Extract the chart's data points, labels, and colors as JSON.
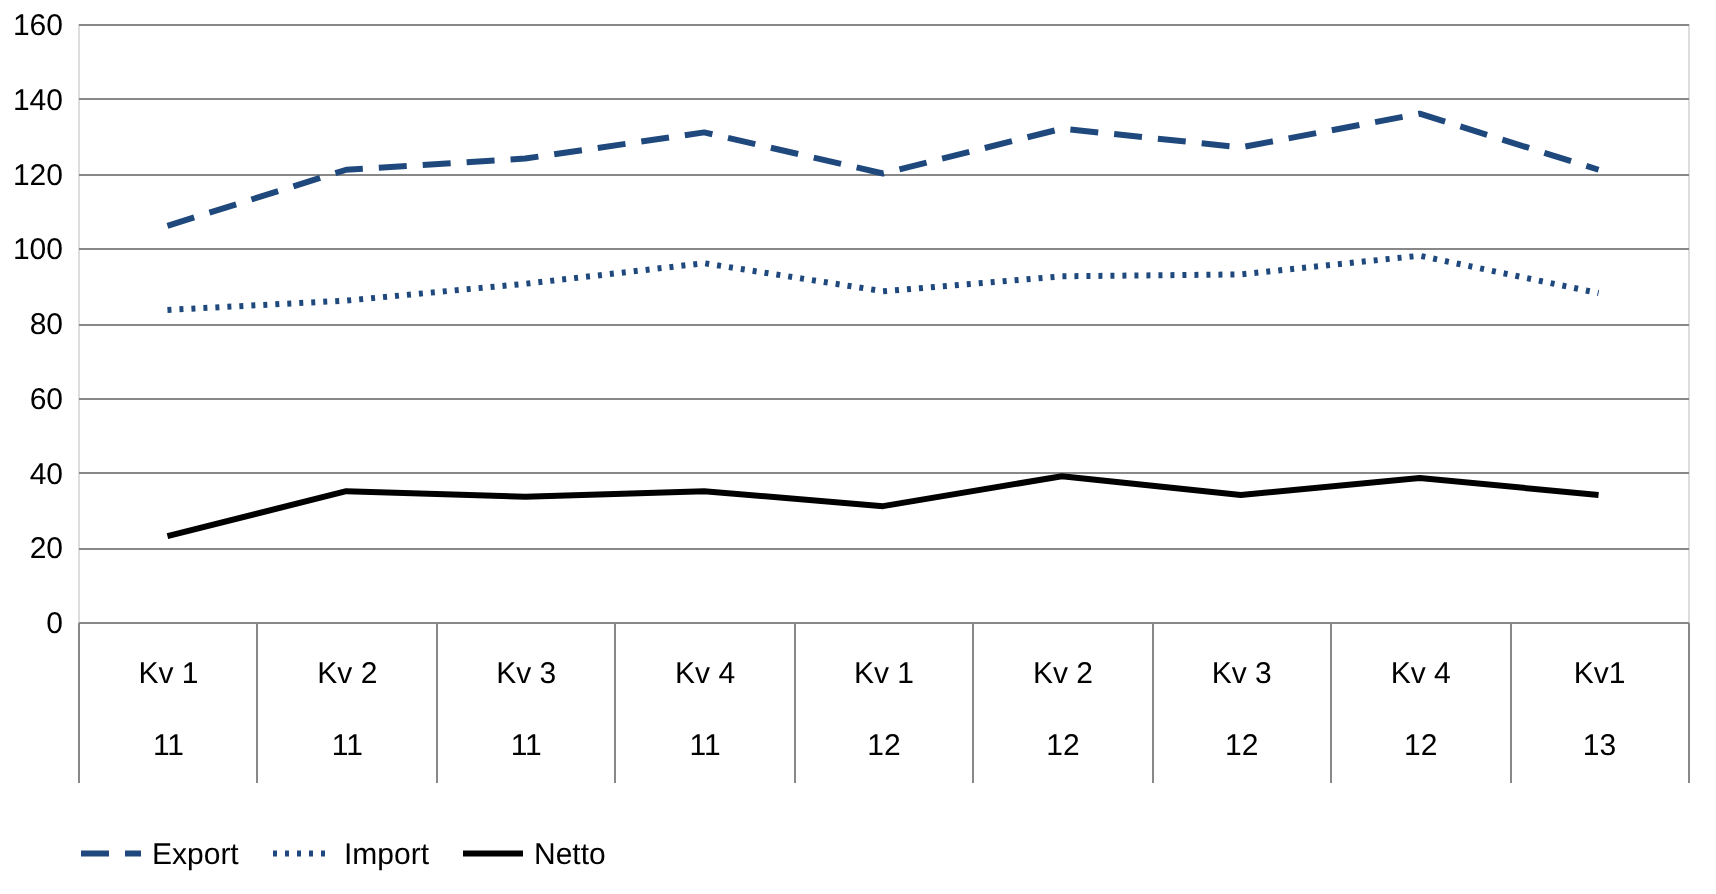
{
  "chart_data": {
    "type": "line",
    "categories": [
      "Kv 1\n11",
      "Kv 2\n11",
      "Kv 3\n11",
      "Kv 4\n11",
      "Kv 1\n12",
      "Kv 2\n12",
      "Kv 3\n12",
      "Kv 4\n12",
      "Kv1\n13"
    ],
    "series": [
      {
        "name": "Export",
        "color": "#1f497d",
        "line_style": "dashed",
        "values": [
          106,
          121,
          124,
          131,
          120,
          132,
          127,
          136,
          121
        ]
      },
      {
        "name": "Import",
        "color": "#1f497d",
        "line_style": "dotted",
        "values": [
          83.5,
          86,
          90.5,
          96,
          88.5,
          92.5,
          93,
          98,
          88
        ]
      },
      {
        "name": "Netto",
        "color": "#000000",
        "line_style": "solid",
        "values": [
          23,
          35,
          33.5,
          35,
          31,
          39,
          34,
          38.5,
          34
        ]
      }
    ],
    "ylim": [
      0,
      160
    ],
    "yticks": [
      0,
      20,
      40,
      60,
      80,
      100,
      120,
      140,
      160
    ],
    "grid": "y",
    "legend": "bottom",
    "marker": "none"
  }
}
